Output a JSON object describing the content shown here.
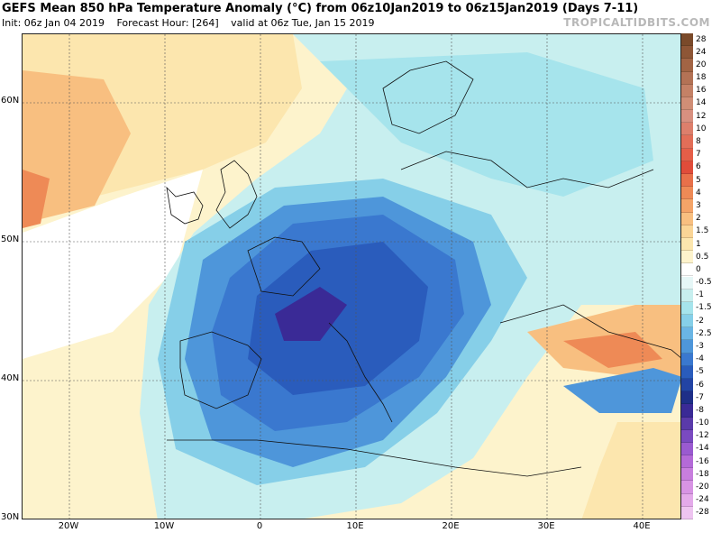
{
  "header": {
    "title": "GEFS Mean 850 hPa Temperature Anomaly (°C) from 06z10Jan2019 to 06z15Jan2019 (Days 7-11)",
    "init": "Init: 06z Jan 04 2019",
    "forecast_hour": "Forecast Hour: [264]",
    "valid": "valid at 06z Tue, Jan 15 2019",
    "brand": "TROPICALTIDBITS.COM"
  },
  "map": {
    "lat_labels": [
      "60N",
      "50N",
      "40N",
      "30N"
    ],
    "lon_labels": [
      "20W",
      "10W",
      "0",
      "10E",
      "20E",
      "30E",
      "40E"
    ]
  },
  "legend": {
    "levels": [
      {
        "label": "28",
        "color": "#7a4a2a"
      },
      {
        "label": "24",
        "color": "#8e5636"
      },
      {
        "label": "20",
        "color": "#a26444"
      },
      {
        "label": "18",
        "color": "#b37255"
      },
      {
        "label": "16",
        "color": "#c48166"
      },
      {
        "label": "14",
        "color": "#d08e76"
      },
      {
        "label": "12",
        "color": "#d89080"
      },
      {
        "label": "10",
        "color": "#dd7f6c"
      },
      {
        "label": "8",
        "color": "#e26e58"
      },
      {
        "label": "7",
        "color": "#e55e48"
      },
      {
        "label": "6",
        "color": "#e04c3a"
      },
      {
        "label": "5",
        "color": "#e8704a"
      },
      {
        "label": "4",
        "color": "#ee8a56"
      },
      {
        "label": "3",
        "color": "#f4a468"
      },
      {
        "label": "2",
        "color": "#f8bf80"
      },
      {
        "label": "1.5",
        "color": "#fad596"
      },
      {
        "label": "1",
        "color": "#fce6ae"
      },
      {
        "label": "0.5",
        "color": "#fdf3cc"
      },
      {
        "label": "0",
        "color": "#ffffff"
      },
      {
        "label": "-0.5",
        "color": "#e6f7f7"
      },
      {
        "label": "-1",
        "color": "#c8efef"
      },
      {
        "label": "-1.5",
        "color": "#a6e4ec"
      },
      {
        "label": "-2",
        "color": "#86cfe8"
      },
      {
        "label": "-2.5",
        "color": "#6ab5e4"
      },
      {
        "label": "-3",
        "color": "#4e96da"
      },
      {
        "label": "-4",
        "color": "#3a78cf"
      },
      {
        "label": "-5",
        "color": "#2a5cbc"
      },
      {
        "label": "-6",
        "color": "#2244a4"
      },
      {
        "label": "-7",
        "color": "#1e2f88"
      },
      {
        "label": "-8",
        "color": "#3a2a96"
      },
      {
        "label": "-10",
        "color": "#5a3aaa"
      },
      {
        "label": "-12",
        "color": "#7a4ac0"
      },
      {
        "label": "-14",
        "color": "#9a5ad0"
      },
      {
        "label": "-16",
        "color": "#b46ad8"
      },
      {
        "label": "-18",
        "color": "#c87ede"
      },
      {
        "label": "-20",
        "color": "#d894e4"
      },
      {
        "label": "-24",
        "color": "#e4aaea"
      },
      {
        "label": "-28",
        "color": "#eec4f0"
      }
    ]
  }
}
